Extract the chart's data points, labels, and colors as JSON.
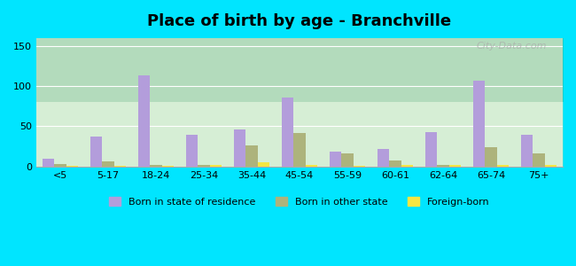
{
  "title": "Place of birth by age - Branchville",
  "categories": [
    "<5",
    "5-17",
    "18-24",
    "25-34",
    "35-44",
    "45-54",
    "55-59",
    "60-61",
    "62-64",
    "65-74",
    "75+"
  ],
  "born_in_state": [
    10,
    37,
    113,
    40,
    46,
    86,
    19,
    22,
    43,
    107,
    39
  ],
  "born_other_state": [
    3,
    6,
    2,
    2,
    26,
    42,
    16,
    8,
    2,
    24,
    16
  ],
  "foreign_born": [
    1,
    1,
    1,
    2,
    5,
    2,
    1,
    2,
    2,
    2,
    2
  ],
  "bar_color_state": "#b39ddb",
  "bar_color_other": "#adb37c",
  "bar_color_foreign": "#f5e642",
  "bg_color_top": "#e8f5e9",
  "bg_color_bottom": "#c8e6c9",
  "ylim": [
    0,
    160
  ],
  "yticks": [
    0,
    50,
    100,
    150
  ],
  "legend_labels": [
    "Born in state of residence",
    "Born in other state",
    "Foreign-born"
  ],
  "background_outer": "#00e5ff",
  "watermark": "City-Data.com"
}
